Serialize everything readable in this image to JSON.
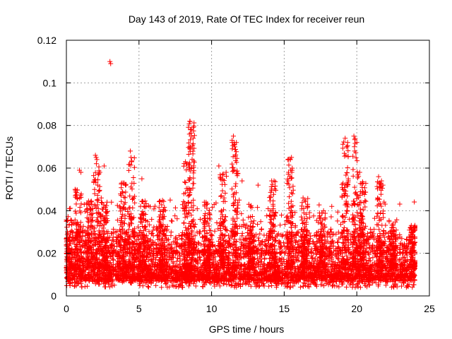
{
  "chart_data": {
    "type": "scatter",
    "title": "Day 143 of 2019, Rate Of TEC Index for receiver reun",
    "xlabel": "GPS time / hours",
    "ylabel": "ROTI / TECUs",
    "xlim": [
      0,
      25
    ],
    "ylim": [
      0,
      0.12
    ],
    "grid": true,
    "marker": "+",
    "color": "#ff0000",
    "x_ticks": [
      0,
      5,
      10,
      15,
      20,
      25
    ],
    "y_ticks": [
      0,
      0.02,
      0.04,
      0.06,
      0.08,
      0.1,
      0.12
    ],
    "x_tick_labels": [
      "0",
      "5",
      "10",
      "15",
      "20",
      "25"
    ],
    "y_tick_labels": [
      "0",
      "0.02",
      "0.04",
      "0.06",
      "0.08",
      "0.1",
      "0.12"
    ],
    "data_range_hours": [
      0,
      24
    ],
    "series": [
      {
        "name": "ROTI",
        "baseline": {
          "min": 0.008,
          "typical": 0.013,
          "dense_upper": 0.03
        },
        "outliers": [
          {
            "x": 3.0,
            "y": 0.11
          },
          {
            "x": 3.05,
            "y": 0.109
          },
          {
            "x": 8.5,
            "y": 0.082
          },
          {
            "x": 8.55,
            "y": 0.078
          },
          {
            "x": 8.6,
            "y": 0.075
          },
          {
            "x": 11.5,
            "y": 0.075
          },
          {
            "x": 11.55,
            "y": 0.072
          },
          {
            "x": 11.6,
            "y": 0.07
          },
          {
            "x": 19.8,
            "y": 0.075
          },
          {
            "x": 19.2,
            "y": 0.074
          },
          {
            "x": 19.3,
            "y": 0.07
          },
          {
            "x": 20.0,
            "y": 0.072
          },
          {
            "x": 19.25,
            "y": 0.066
          },
          {
            "x": 19.85,
            "y": 0.068
          },
          {
            "x": 2.0,
            "y": 0.066
          },
          {
            "x": 2.05,
            "y": 0.065
          },
          {
            "x": 2.1,
            "y": 0.064
          },
          {
            "x": 4.4,
            "y": 0.068
          },
          {
            "x": 4.45,
            "y": 0.065
          },
          {
            "x": 4.5,
            "y": 0.063
          },
          {
            "x": 8.2,
            "y": 0.063
          },
          {
            "x": 8.25,
            "y": 0.062
          },
          {
            "x": 8.3,
            "y": 0.062
          },
          {
            "x": 15.5,
            "y": 0.065
          },
          {
            "x": 15.3,
            "y": 0.058
          },
          {
            "x": 10.5,
            "y": 0.061
          },
          {
            "x": 11.0,
            "y": 0.058
          },
          {
            "x": 2.6,
            "y": 0.061
          },
          {
            "x": 21.5,
            "y": 0.056
          },
          {
            "x": 21.7,
            "y": 0.054
          },
          {
            "x": 21.8,
            "y": 0.052
          },
          {
            "x": 21.6,
            "y": 0.053
          },
          {
            "x": 5.2,
            "y": 0.055
          },
          {
            "x": 3.8,
            "y": 0.053
          },
          {
            "x": 3.9,
            "y": 0.053
          },
          {
            "x": 13.2,
            "y": 0.052
          },
          {
            "x": 14.3,
            "y": 0.054
          },
          {
            "x": 0.9,
            "y": 0.059
          },
          {
            "x": 1.0,
            "y": 0.058
          },
          {
            "x": 12.1,
            "y": 0.054
          },
          {
            "x": 20.2,
            "y": 0.058
          },
          {
            "x": 0.6,
            "y": 0.05
          },
          {
            "x": 2.4,
            "y": 0.046
          },
          {
            "x": 2.8,
            "y": 0.044
          },
          {
            "x": 16.3,
            "y": 0.046
          },
          {
            "x": 16.4,
            "y": 0.045
          },
          {
            "x": 9.5,
            "y": 0.044
          },
          {
            "x": 11.9,
            "y": 0.045
          }
        ],
        "bursts": [
          {
            "x": 0.2,
            "peak": 0.036
          },
          {
            "x": 0.8,
            "peak": 0.05
          },
          {
            "x": 1.6,
            "peak": 0.045
          },
          {
            "x": 2.1,
            "peak": 0.065
          },
          {
            "x": 2.6,
            "peak": 0.045
          },
          {
            "x": 3.9,
            "peak": 0.053
          },
          {
            "x": 4.5,
            "peak": 0.068
          },
          {
            "x": 5.3,
            "peak": 0.045
          },
          {
            "x": 6.6,
            "peak": 0.045
          },
          {
            "x": 8.3,
            "peak": 0.063
          },
          {
            "x": 8.6,
            "peak": 0.082
          },
          {
            "x": 9.7,
            "peak": 0.044
          },
          {
            "x": 10.8,
            "peak": 0.058
          },
          {
            "x": 11.6,
            "peak": 0.075
          },
          {
            "x": 12.7,
            "peak": 0.045
          },
          {
            "x": 14.2,
            "peak": 0.054
          },
          {
            "x": 15.4,
            "peak": 0.065
          },
          {
            "x": 16.4,
            "peak": 0.046
          },
          {
            "x": 17.6,
            "peak": 0.04
          },
          {
            "x": 19.2,
            "peak": 0.074
          },
          {
            "x": 19.9,
            "peak": 0.075
          },
          {
            "x": 20.4,
            "peak": 0.055
          },
          {
            "x": 21.6,
            "peak": 0.056
          },
          {
            "x": 22.5,
            "peak": 0.035
          },
          {
            "x": 23.9,
            "peak": 0.034
          }
        ]
      }
    ]
  }
}
